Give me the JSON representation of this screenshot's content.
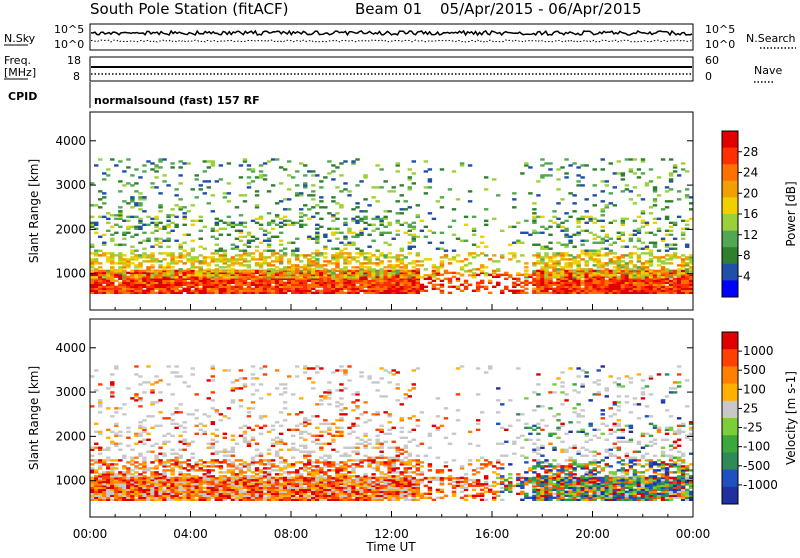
{
  "chart_data": {
    "type": "heatmap",
    "title": {
      "station": "South Pole Station (fitACF)",
      "beam": "Beam 01",
      "dates": "05/Apr/2015 - 06/Apr/2015"
    },
    "xlabel": "Time UT",
    "x_ticks": [
      "00:00",
      "04:00",
      "08:00",
      "12:00",
      "16:00",
      "20:00",
      "00:00"
    ],
    "xlim_hours": [
      0,
      24
    ],
    "summary_panels": {
      "nsky": {
        "label": "N.Sky",
        "ticks": [
          "10^5",
          "10^0"
        ]
      },
      "nsearch": {
        "label": "N.Search"
      },
      "freq": {
        "label_lines": [
          "Freq.",
          "[MHz]"
        ],
        "ticks": [
          "18",
          "8"
        ],
        "right_ticks": [
          "60",
          "0"
        ]
      },
      "nave": {
        "label": "Nave"
      },
      "cpid": {
        "label": "CPID",
        "text": "normalsound (fast) 157 RF"
      }
    },
    "panels": [
      {
        "name": "power",
        "ylabel": "Slant Range [km]",
        "ylim": [
          180,
          4650
        ],
        "y_ticks": [
          1000,
          2000,
          3000,
          4000
        ],
        "colorbar": {
          "label": "Power [dB]",
          "ticks": [
            "28",
            "24",
            "20",
            "16",
            "12",
            "8",
            "4"
          ],
          "range": [
            0,
            32
          ],
          "colors": [
            "#0000ff",
            "#1f4fa8",
            "#2f7f2f",
            "#52a852",
            "#9ad13a",
            "#f0d000",
            "#f0a000",
            "#ff7000",
            "#ff3000",
            "#e00000"
          ]
        },
        "bands": [
          {
            "r0": 550,
            "r1": 1100,
            "density": 0.95,
            "vmin": 22,
            "vmax": 32
          },
          {
            "r0": 900,
            "r1": 1500,
            "density": 0.55,
            "vmin": 12,
            "vmax": 24
          },
          {
            "r0": 1500,
            "r1": 2300,
            "density": 0.22,
            "vmin": 4,
            "vmax": 18
          },
          {
            "r0": 2300,
            "r1": 3600,
            "density": 0.1,
            "vmin": 4,
            "vmax": 16
          }
        ]
      },
      {
        "name": "velocity",
        "ylabel": "Slant Range [km]",
        "ylim": [
          180,
          4650
        ],
        "y_ticks": [
          1000,
          2000,
          3000,
          4000
        ],
        "colorbar": {
          "label": "Velocity [m s-1]",
          "ticks": [
            "1000",
            "500",
            "100",
            "25",
            "-25",
            "-100",
            "-500",
            "-1000"
          ],
          "colors": [
            "#2030a0",
            "#2050c0",
            "#2e8b57",
            "#3aa83a",
            "#7ccd3a",
            "#c8c8c8",
            "#ffb000",
            "#ff8000",
            "#ff4000",
            "#e00000"
          ]
        },
        "bands": [
          {
            "r0": 550,
            "r1": 1100,
            "density": 0.95
          },
          {
            "r0": 900,
            "r1": 1500,
            "density": 0.55
          },
          {
            "r0": 1500,
            "r1": 2300,
            "density": 0.22
          },
          {
            "r0": 2300,
            "r1": 3600,
            "density": 0.1
          }
        ]
      }
    ]
  }
}
